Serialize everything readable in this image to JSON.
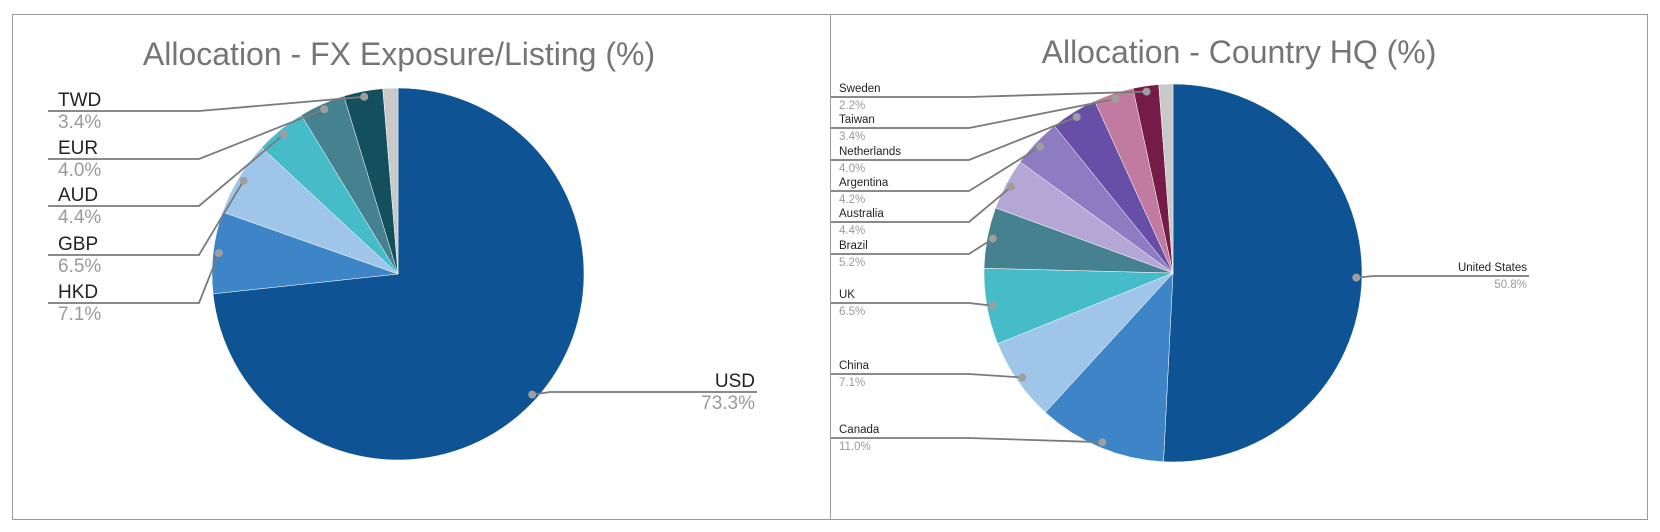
{
  "colors": {
    "border": "#9a9a9a",
    "title": "#757575",
    "label": "#222222",
    "value": "#9a9a9a",
    "leader": "#7a7a7a"
  },
  "chart_data": [
    {
      "type": "pie",
      "title": "Allocation - FX Exposure/Listing (%)",
      "slices": [
        {
          "label": "USD",
          "value": 73.3,
          "display": "73.3%",
          "color": "#0e5393"
        },
        {
          "label": "HKD",
          "value": 7.1,
          "display": "7.1%",
          "color": "#3d85c6"
        },
        {
          "label": "GBP",
          "value": 6.5,
          "display": "6.5%",
          "color": "#9fc5e8"
        },
        {
          "label": "AUD",
          "value": 4.4,
          "display": "4.4%",
          "color": "#45bcc8"
        },
        {
          "label": "EUR",
          "value": 4.0,
          "display": "4.0%",
          "color": "#45818e"
        },
        {
          "label": "TWD",
          "value": 3.4,
          "display": "3.4%",
          "color": "#134f5c"
        },
        {
          "label": "",
          "value": 1.3,
          "display": "",
          "color": "#c9c9c9"
        }
      ]
    },
    {
      "type": "pie",
      "title": "Allocation - Country HQ (%)",
      "slices": [
        {
          "label": "United States",
          "value": 50.8,
          "display": "50.8%",
          "color": "#0e5393"
        },
        {
          "label": "Canada",
          "value": 11.0,
          "display": "11.0%",
          "color": "#3d85c6"
        },
        {
          "label": "China",
          "value": 7.1,
          "display": "7.1%",
          "color": "#9fc5e8"
        },
        {
          "label": "UK",
          "value": 6.5,
          "display": "6.5%",
          "color": "#45bcc8"
        },
        {
          "label": "Brazil",
          "value": 5.2,
          "display": "5.2%",
          "color": "#45818e"
        },
        {
          "label": "Australia",
          "value": 4.4,
          "display": "4.4%",
          "color": "#b4a7d6"
        },
        {
          "label": "Argentina",
          "value": 4.2,
          "display": "4.2%",
          "color": "#8e7cc3"
        },
        {
          "label": "Netherlands",
          "value": 4.0,
          "display": "4.0%",
          "color": "#674ea7"
        },
        {
          "label": "Taiwan",
          "value": 3.4,
          "display": "3.4%",
          "color": "#c27ba0"
        },
        {
          "label": "Sweden",
          "value": 2.2,
          "display": "2.2%",
          "color": "#741b47"
        },
        {
          "label": "",
          "value": 1.2,
          "display": "",
          "color": "#c9c9c9"
        }
      ]
    }
  ]
}
